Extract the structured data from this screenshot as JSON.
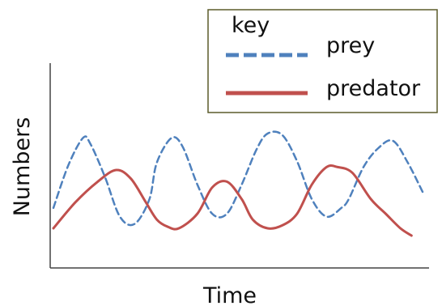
{
  "chart_data": {
    "type": "line",
    "xlabel": "Time",
    "ylabel": "Numbers",
    "grid": false,
    "xlim": [
      0,
      100
    ],
    "ylim": [
      0,
      100
    ],
    "legend": {
      "title": "key",
      "position": "top-right",
      "border_color": "#5b5b2a"
    },
    "series": [
      {
        "name": "prey",
        "color": "#4f81bd",
        "style": "dashed",
        "x": [
          0,
          4,
          8,
          10,
          14,
          18,
          22,
          26,
          28,
          32,
          35,
          39,
          43,
          47,
          51,
          55,
          58,
          62,
          66,
          70,
          74,
          78,
          80,
          84,
          88,
          92,
          96,
          100
        ],
        "y": [
          24,
          53,
          72,
          68,
          45,
          18,
          13,
          30,
          55,
          72,
          66,
          40,
          20,
          20,
          40,
          64,
          75,
          74,
          56,
          30,
          18,
          24,
          30,
          52,
          65,
          70,
          55,
          35
        ]
      },
      {
        "name": "predator",
        "color": "#c0504d",
        "style": "solid",
        "x": [
          0,
          6,
          12,
          17,
          21,
          25,
          28,
          31,
          34,
          39,
          43,
          47,
          51,
          54,
          58,
          62,
          66,
          70,
          74,
          77,
          81,
          86,
          90,
          94,
          97
        ],
        "y": [
          10,
          28,
          42,
          50,
          44,
          28,
          16,
          11,
          10,
          20,
          38,
          42,
          30,
          16,
          10,
          12,
          20,
          40,
          52,
          52,
          48,
          30,
          20,
          10,
          5
        ]
      }
    ]
  }
}
